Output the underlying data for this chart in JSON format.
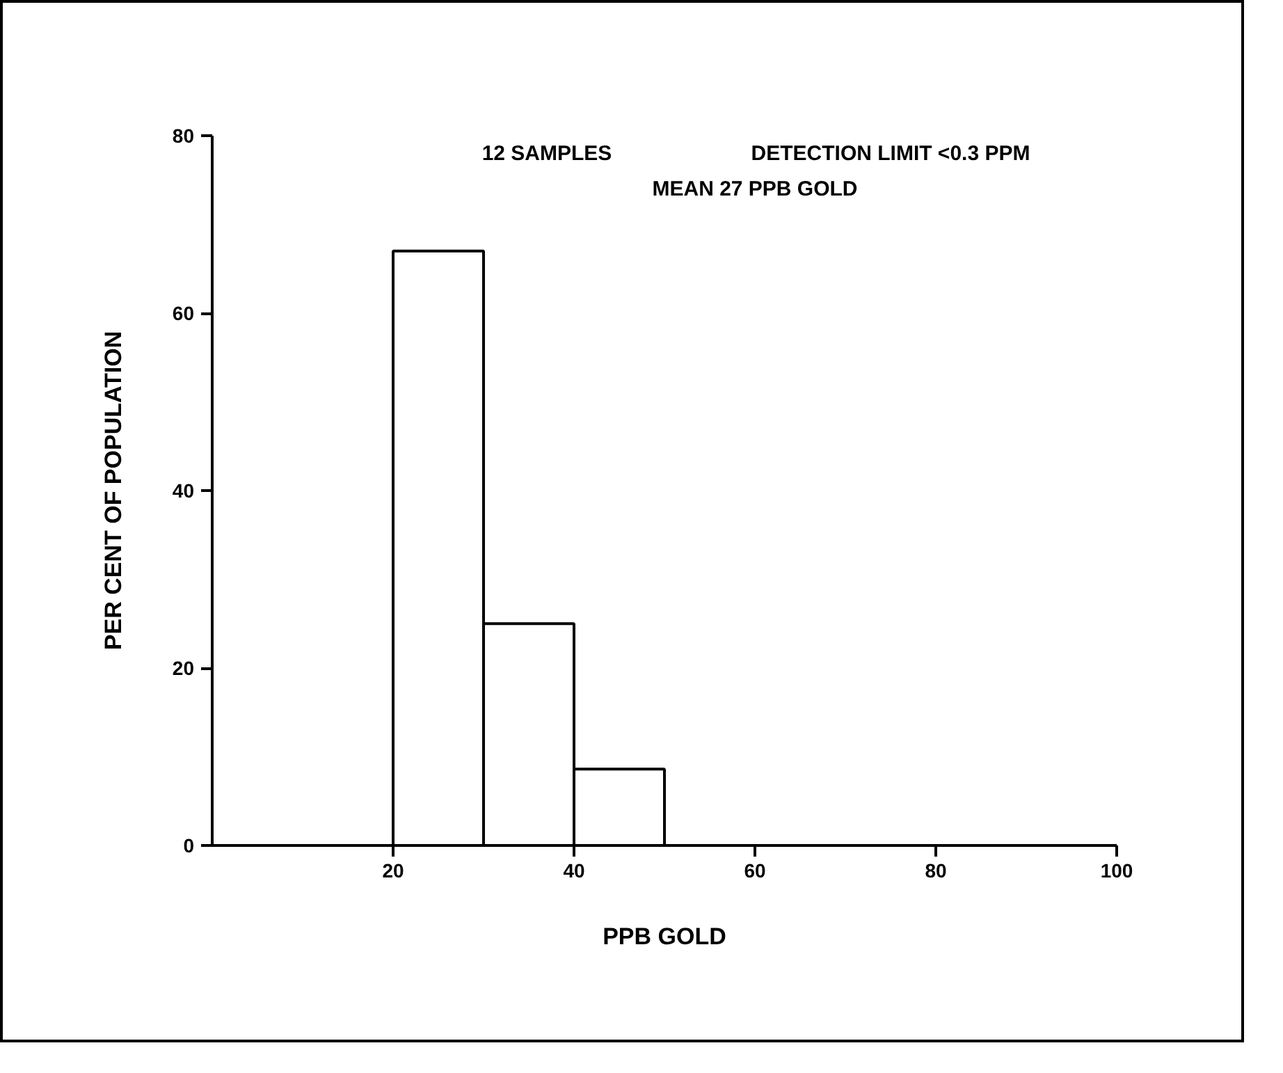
{
  "chart_data": {
    "type": "histogram",
    "xlabel": "PPB GOLD",
    "ylabel": "PER CENT OF POPULATION",
    "annotations": [
      "12 SAMPLES",
      "DETECTION LIMIT <0.3 PPM",
      "MEAN 27 PPB GOLD"
    ],
    "bins": [
      20,
      30,
      40,
      50
    ],
    "values": [
      67,
      25,
      8.6
    ],
    "color": "#ffffff",
    "xlim": [
      0,
      100
    ],
    "ylim": [
      0,
      80
    ],
    "xticks": [
      20,
      40,
      60,
      80,
      100
    ],
    "yticks": [
      0,
      20,
      40,
      60,
      80
    ],
    "grid": false
  }
}
